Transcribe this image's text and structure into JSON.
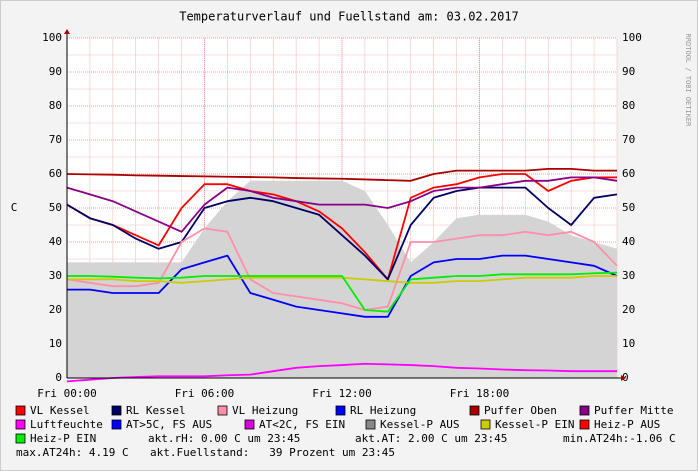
{
  "chart_data": {
    "type": "line",
    "title": "Temperaturverlauf und Fuellstand am: 03.02.2017",
    "y_label": "C",
    "watermark": "RRDTOOL / TOBI OETIKER",
    "x": [
      0,
      1,
      2,
      3,
      4,
      5,
      6,
      7,
      8,
      9,
      10,
      11,
      12,
      13,
      14,
      15,
      16,
      17,
      18,
      19,
      20,
      21,
      22,
      23,
      24
    ],
    "xlim": [
      0,
      24
    ],
    "xticks": [
      {
        "value": 0,
        "label": "Fri 00:00"
      },
      {
        "value": 6,
        "label": "Fri 06:00"
      },
      {
        "value": 12,
        "label": "Fri 12:00"
      },
      {
        "value": 18,
        "label": "Fri 18:00"
      }
    ],
    "ylim": [
      0,
      100
    ],
    "yticks": [
      0,
      10,
      20,
      30,
      40,
      50,
      60,
      70,
      80,
      90,
      100
    ],
    "grid": true,
    "series": [
      {
        "name": "Kessel-P AUS",
        "color": "#d4d4d4",
        "style": "area",
        "values": [
          34,
          34,
          34,
          34,
          34,
          34,
          44,
          52,
          58,
          58,
          58,
          58,
          58,
          55,
          45,
          34,
          40,
          47,
          48,
          48,
          48,
          46,
          42,
          40,
          38
        ]
      },
      {
        "name": "VL Kessel",
        "color": "#ff0000",
        "values": [
          51,
          47,
          45,
          42,
          39,
          50,
          57,
          57,
          55,
          54,
          52,
          49,
          44,
          37,
          29,
          53,
          56,
          57,
          59,
          60,
          60,
          55,
          58,
          59,
          59
        ]
      },
      {
        "name": "RL Kessel",
        "color": "#000066",
        "values": [
          51,
          47,
          45,
          41,
          38,
          40,
          50,
          52,
          53,
          52,
          50,
          48,
          42,
          36,
          29,
          45,
          53,
          55,
          56,
          56,
          56,
          50,
          45,
          53,
          54
        ]
      },
      {
        "name": "VL Heizung",
        "color": "#ff8fa8",
        "values": [
          29,
          28,
          27,
          27,
          28,
          40,
          44,
          43,
          29,
          25,
          24,
          23,
          22,
          20,
          21,
          40,
          40,
          41,
          42,
          42,
          43,
          42,
          43,
          40,
          33
        ]
      },
      {
        "name": "RL Heizung",
        "color": "#0000ff",
        "values": [
          26,
          26,
          25,
          25,
          25,
          32,
          34,
          36,
          25,
          23,
          21,
          20,
          19,
          18,
          18,
          30,
          34,
          35,
          35,
          36,
          36,
          35,
          34,
          33,
          30
        ]
      },
      {
        "name": "Puffer Oben",
        "color": "#aa0000",
        "values": [
          60,
          59.9,
          59.8,
          59.6,
          59.5,
          59.4,
          59.3,
          59.2,
          59.1,
          59,
          58.8,
          58.7,
          58.6,
          58.4,
          58.2,
          58,
          60,
          61,
          61,
          61,
          61,
          61.5,
          61.5,
          61,
          61
        ]
      },
      {
        "name": "Puffer Mitte",
        "color": "#880088",
        "values": [
          56,
          54,
          52,
          49,
          46,
          43,
          51,
          56,
          55,
          53,
          52,
          51,
          51,
          51,
          50,
          52,
          55,
          56,
          56,
          57,
          58,
          58,
          59,
          59,
          58
        ]
      },
      {
        "name": "Luftfeuchte",
        "color": "#ff00ff",
        "values": [
          -1,
          -0.5,
          0,
          0.3,
          0.5,
          0.5,
          0.5,
          0.8,
          1,
          2,
          3,
          3.5,
          3.8,
          4.2,
          4,
          3.8,
          3.5,
          3,
          2.8,
          2.5,
          2.3,
          2.2,
          2,
          2,
          2
        ]
      },
      {
        "name": "AT>5C, FS AUS",
        "color": "#0000ff",
        "values": [
          null,
          null,
          null,
          null,
          null,
          null,
          null,
          null,
          null,
          null,
          null,
          null,
          null,
          null,
          null,
          null,
          null,
          null,
          null,
          null,
          null,
          null,
          null,
          null,
          null
        ]
      },
      {
        "name": "AT<2C, FS EIN",
        "color": "#dd00dd",
        "values": [
          null,
          null,
          null,
          null,
          null,
          null,
          null,
          null,
          null,
          null,
          null,
          null,
          null,
          null,
          null,
          null,
          null,
          null,
          null,
          null,
          null,
          null,
          null,
          null,
          null
        ]
      },
      {
        "name": "Kessel-P EIN",
        "color": "#cccc00",
        "values": [
          29,
          29,
          29,
          28.5,
          28.5,
          28,
          28.5,
          29,
          29.5,
          29.5,
          29.5,
          29.5,
          29.5,
          29,
          28.5,
          28,
          28,
          28.5,
          28.5,
          29,
          29.5,
          29.5,
          29.5,
          30,
          30
        ]
      },
      {
        "name": "Heiz-P AUS",
        "color": "#ff0000",
        "values": [
          null,
          null,
          null,
          null,
          null,
          null,
          null,
          null,
          null,
          null,
          null,
          null,
          null,
          null,
          null,
          null,
          null,
          null,
          null,
          null,
          null,
          null,
          null,
          null,
          null
        ]
      },
      {
        "name": "Heiz-P EIN",
        "color": "#00ee00",
        "values": [
          30,
          30,
          29.8,
          29.5,
          29.3,
          29.5,
          30,
          30,
          30,
          30,
          30,
          30,
          30,
          20,
          19.5,
          29,
          29.5,
          30,
          30,
          30.5,
          30.5,
          30.5,
          30.5,
          30.8,
          31
        ]
      }
    ],
    "notes": [
      "akt.rH: 0.00 C um 23:45",
      "akt.AT: 2.00 C um 23:45",
      "min.AT24h:-1.06 C",
      "max.AT24h: 4.19 C",
      "akt.Fuellstand:   39 Prozent um 23:45"
    ]
  }
}
